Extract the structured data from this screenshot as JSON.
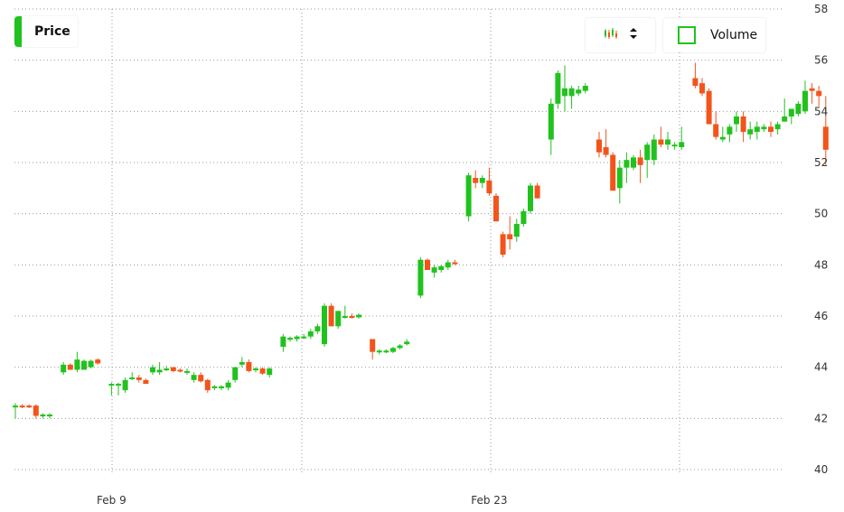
{
  "legend": {
    "price_label": "Price",
    "volume_label": "Volume"
  },
  "colors": {
    "up": "#21c21e",
    "down": "#f2541b",
    "grid": "#9a9a9a"
  },
  "icons": {
    "chart_type": "candlestick-icon",
    "selector": "up-down-chevron-icon"
  },
  "chart_data": {
    "type": "candlestick",
    "title": "",
    "xlabel": "",
    "ylabel": "",
    "ylim": [
      40,
      58
    ],
    "yticks": [
      40,
      42,
      44,
      46,
      48,
      50,
      52,
      54,
      56,
      58
    ],
    "x_tick_labels": [
      {
        "label": "Feb 9",
        "index": 14
      },
      {
        "label": "Feb 23",
        "index": 69
      }
    ],
    "y_axis_position": "right",
    "grid": true,
    "candles": [
      {
        "o": 42.5,
        "h": 42.6,
        "l": 42.0,
        "c": 42.5
      },
      {
        "o": 42.5,
        "h": 42.55,
        "l": 42.4,
        "c": 42.45
      },
      {
        "o": 42.5,
        "h": 42.55,
        "l": 42.4,
        "c": 42.45
      },
      {
        "o": 42.5,
        "h": 42.55,
        "l": 42.0,
        "c": 42.1
      },
      {
        "o": 42.1,
        "h": 42.2,
        "l": 42.0,
        "c": 42.15
      },
      {
        "o": 42.1,
        "h": 42.2,
        "l": 42.0,
        "c": 42.15
      },
      null,
      {
        "o": 43.8,
        "h": 44.2,
        "l": 43.7,
        "c": 44.1
      },
      {
        "o": 44.1,
        "h": 44.15,
        "l": 43.9,
        "c": 43.9
      },
      {
        "o": 43.9,
        "h": 44.6,
        "l": 43.8,
        "c": 44.3
      },
      {
        "o": 43.9,
        "h": 44.3,
        "l": 43.9,
        "c": 44.25
      },
      {
        "o": 44.0,
        "h": 44.3,
        "l": 43.95,
        "c": 44.25
      },
      {
        "o": 44.3,
        "h": 44.35,
        "l": 44.1,
        "c": 44.15
      },
      null,
      {
        "o": 43.3,
        "h": 43.4,
        "l": 42.9,
        "c": 43.35
      },
      {
        "o": 43.3,
        "h": 43.4,
        "l": 42.9,
        "c": 43.35
      },
      {
        "o": 43.1,
        "h": 43.6,
        "l": 43.0,
        "c": 43.5
      },
      {
        "o": 43.6,
        "h": 43.8,
        "l": 43.5,
        "c": 43.6
      },
      {
        "o": 43.6,
        "h": 43.7,
        "l": 43.4,
        "c": 43.5
      },
      {
        "o": 43.5,
        "h": 43.55,
        "l": 43.35,
        "c": 43.35
      },
      {
        "o": 43.8,
        "h": 44.1,
        "l": 43.7,
        "c": 44.0
      },
      {
        "o": 43.8,
        "h": 44.2,
        "l": 43.7,
        "c": 43.9
      },
      {
        "o": 43.9,
        "h": 44.05,
        "l": 43.85,
        "c": 43.95
      },
      {
        "o": 44.0,
        "h": 44.0,
        "l": 43.8,
        "c": 43.85
      },
      {
        "o": 43.9,
        "h": 43.95,
        "l": 43.8,
        "c": 43.85
      },
      {
        "o": 43.8,
        "h": 43.95,
        "l": 43.7,
        "c": 43.85
      },
      {
        "o": 43.5,
        "h": 43.8,
        "l": 43.4,
        "c": 43.7
      },
      {
        "o": 43.7,
        "h": 43.8,
        "l": 43.4,
        "c": 43.45
      },
      {
        "o": 43.5,
        "h": 43.55,
        "l": 43.0,
        "c": 43.1
      },
      {
        "o": 43.2,
        "h": 43.3,
        "l": 43.1,
        "c": 43.25
      },
      {
        "o": 43.2,
        "h": 43.3,
        "l": 43.1,
        "c": 43.25
      },
      {
        "o": 43.2,
        "h": 43.5,
        "l": 43.1,
        "c": 43.4
      },
      {
        "o": 43.5,
        "h": 44.0,
        "l": 43.4,
        "c": 44.0
      },
      {
        "o": 44.1,
        "h": 44.4,
        "l": 44.0,
        "c": 44.2
      },
      {
        "o": 44.2,
        "h": 44.3,
        "l": 43.8,
        "c": 43.85
      },
      {
        "o": 43.9,
        "h": 44.0,
        "l": 43.8,
        "c": 43.95
      },
      {
        "o": 43.95,
        "h": 44.0,
        "l": 43.7,
        "c": 43.75
      },
      {
        "o": 43.7,
        "h": 44.0,
        "l": 43.6,
        "c": 43.95
      },
      null,
      {
        "o": 44.8,
        "h": 45.3,
        "l": 44.6,
        "c": 45.2
      },
      {
        "o": 45.1,
        "h": 45.2,
        "l": 45.0,
        "c": 45.15
      },
      {
        "o": 45.1,
        "h": 45.25,
        "l": 45.0,
        "c": 45.2
      },
      {
        "o": 45.2,
        "h": 45.3,
        "l": 45.1,
        "c": 45.2
      },
      {
        "o": 45.2,
        "h": 45.5,
        "l": 45.1,
        "c": 45.4
      },
      {
        "o": 45.4,
        "h": 45.7,
        "l": 45.3,
        "c": 45.6
      },
      {
        "o": 44.9,
        "h": 46.5,
        "l": 44.8,
        "c": 46.4
      },
      {
        "o": 46.4,
        "h": 46.5,
        "l": 45.6,
        "c": 45.6
      },
      {
        "o": 45.6,
        "h": 46.2,
        "l": 45.5,
        "c": 46.2
      },
      {
        "o": 46.0,
        "h": 46.4,
        "l": 45.9,
        "c": 46.0
      },
      {
        "o": 46.0,
        "h": 46.1,
        "l": 45.9,
        "c": 45.95
      },
      {
        "o": 45.95,
        "h": 46.1,
        "l": 45.9,
        "c": 46.05
      },
      null,
      {
        "o": 45.1,
        "h": 45.1,
        "l": 44.3,
        "c": 44.6
      },
      {
        "o": 44.6,
        "h": 44.7,
        "l": 44.5,
        "c": 44.65
      },
      {
        "o": 44.6,
        "h": 44.7,
        "l": 44.55,
        "c": 44.65
      },
      {
        "o": 44.6,
        "h": 44.8,
        "l": 44.55,
        "c": 44.75
      },
      {
        "o": 44.75,
        "h": 44.9,
        "l": 44.7,
        "c": 44.85
      },
      {
        "o": 44.9,
        "h": 45.1,
        "l": 44.85,
        "c": 45.0
      },
      null,
      {
        "o": 46.8,
        "h": 48.3,
        "l": 46.7,
        "c": 48.2
      },
      {
        "o": 48.2,
        "h": 48.25,
        "l": 47.8,
        "c": 47.8
      },
      {
        "o": 47.7,
        "h": 48.0,
        "l": 47.5,
        "c": 47.9
      },
      {
        "o": 47.8,
        "h": 48.0,
        "l": 47.7,
        "c": 47.95
      },
      {
        "o": 47.9,
        "h": 48.2,
        "l": 47.8,
        "c": 48.1
      },
      {
        "o": 48.1,
        "h": 48.2,
        "l": 48.0,
        "c": 48.05
      },
      null,
      {
        "o": 49.9,
        "h": 51.6,
        "l": 49.7,
        "c": 51.5
      },
      {
        "o": 51.4,
        "h": 51.7,
        "l": 51.0,
        "c": 51.2
      },
      {
        "o": 51.2,
        "h": 51.5,
        "l": 51.0,
        "c": 51.4
      },
      {
        "o": 51.3,
        "h": 51.8,
        "l": 50.7,
        "c": 50.8
      },
      {
        "o": 50.7,
        "h": 50.8,
        "l": 49.7,
        "c": 49.7
      },
      {
        "o": 49.2,
        "h": 49.3,
        "l": 48.3,
        "c": 48.4
      },
      {
        "o": 49.2,
        "h": 49.9,
        "l": 48.6,
        "c": 49.0
      },
      {
        "o": 49.1,
        "h": 49.8,
        "l": 48.9,
        "c": 49.6
      },
      {
        "o": 49.6,
        "h": 50.2,
        "l": 49.5,
        "c": 50.1
      },
      {
        "o": 50.1,
        "h": 51.2,
        "l": 50.0,
        "c": 51.1
      },
      {
        "o": 51.1,
        "h": 51.2,
        "l": 50.6,
        "c": 50.6
      },
      null,
      {
        "o": 52.9,
        "h": 54.5,
        "l": 52.3,
        "c": 54.3
      },
      {
        "o": 54.3,
        "h": 55.6,
        "l": 54.1,
        "c": 55.5
      },
      {
        "o": 54.6,
        "h": 55.8,
        "l": 54.0,
        "c": 54.9
      },
      {
        "o": 54.6,
        "h": 55.0,
        "l": 54.1,
        "c": 54.9
      },
      {
        "o": 54.7,
        "h": 55.0,
        "l": 54.6,
        "c": 54.85
      },
      {
        "o": 54.8,
        "h": 55.1,
        "l": 54.7,
        "c": 55.0
      },
      null,
      {
        "o": 52.9,
        "h": 53.2,
        "l": 52.2,
        "c": 52.4
      },
      {
        "o": 52.6,
        "h": 53.3,
        "l": 52.2,
        "c": 52.3
      },
      {
        "o": 52.3,
        "h": 52.4,
        "l": 50.9,
        "c": 50.9
      },
      {
        "o": 51.0,
        "h": 52.1,
        "l": 50.4,
        "c": 51.8
      },
      {
        "o": 51.8,
        "h": 52.4,
        "l": 51.2,
        "c": 52.1
      },
      {
        "o": 51.8,
        "h": 52.3,
        "l": 51.7,
        "c": 52.2
      },
      {
        "o": 52.2,
        "h": 52.5,
        "l": 51.2,
        "c": 51.9
      },
      {
        "o": 52.1,
        "h": 52.8,
        "l": 51.4,
        "c": 52.7
      },
      {
        "o": 52.1,
        "h": 53.1,
        "l": 51.9,
        "c": 52.9
      },
      {
        "o": 52.9,
        "h": 53.4,
        "l": 52.6,
        "c": 52.7
      },
      {
        "o": 52.7,
        "h": 53.2,
        "l": 52.5,
        "c": 52.9
      },
      {
        "o": 52.7,
        "h": 52.8,
        "l": 52.5,
        "c": 52.7
      },
      {
        "o": 52.6,
        "h": 53.4,
        "l": 52.5,
        "c": 52.8
      },
      null,
      {
        "o": 55.3,
        "h": 55.9,
        "l": 54.9,
        "c": 55.0
      },
      {
        "o": 55.1,
        "h": 55.3,
        "l": 54.6,
        "c": 54.7
      },
      {
        "o": 54.8,
        "h": 54.9,
        "l": 53.5,
        "c": 53.5
      },
      {
        "o": 53.5,
        "h": 54.0,
        "l": 52.9,
        "c": 53.0
      },
      {
        "o": 52.9,
        "h": 53.4,
        "l": 52.8,
        "c": 53.0
      },
      {
        "o": 53.1,
        "h": 53.5,
        "l": 52.8,
        "c": 53.4
      },
      {
        "o": 53.5,
        "h": 54.0,
        "l": 53.2,
        "c": 53.8
      },
      {
        "o": 53.8,
        "h": 54.0,
        "l": 52.8,
        "c": 53.2
      },
      {
        "o": 53.1,
        "h": 53.6,
        "l": 52.9,
        "c": 53.3
      },
      {
        "o": 53.2,
        "h": 53.6,
        "l": 52.9,
        "c": 53.4
      },
      {
        "o": 53.3,
        "h": 53.5,
        "l": 53.2,
        "c": 53.4
      },
      {
        "o": 53.4,
        "h": 53.6,
        "l": 53.0,
        "c": 53.2
      },
      {
        "o": 53.3,
        "h": 53.6,
        "l": 53.1,
        "c": 53.5
      },
      {
        "o": 53.6,
        "h": 54.5,
        "l": 53.6,
        "c": 53.8
      },
      {
        "o": 53.8,
        "h": 54.1,
        "l": 53.5,
        "c": 54.1
      },
      {
        "o": 53.9,
        "h": 54.4,
        "l": 53.8,
        "c": 54.3
      },
      {
        "o": 54.0,
        "h": 55.2,
        "l": 53.9,
        "c": 54.8
      },
      {
        "o": 54.9,
        "h": 55.1,
        "l": 54.3,
        "c": 54.8
      },
      {
        "o": 54.8,
        "h": 55.0,
        "l": 54.2,
        "c": 54.6
      },
      {
        "o": 53.4,
        "h": 54.6,
        "l": 51.9,
        "c": 52.5
      }
    ]
  }
}
